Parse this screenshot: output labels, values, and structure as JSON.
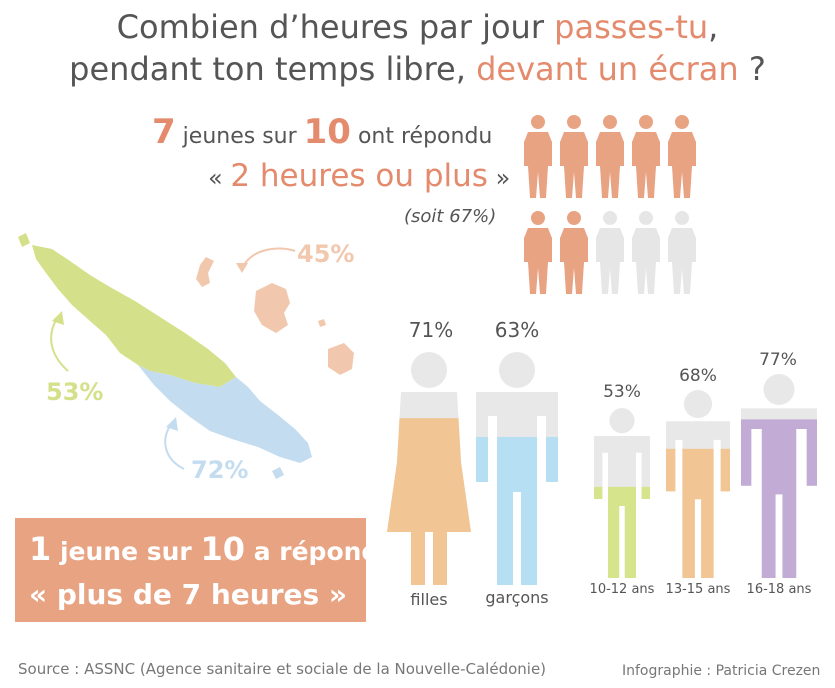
{
  "title": {
    "line1_a": "Combien d’heures par jour ",
    "line1_b": "passes-tu",
    "line1_c": ",",
    "line2_a": "pendant ton temps libre, ",
    "line2_b": "devant un écran",
    "line2_c": " ?"
  },
  "headline": {
    "n1": "7",
    "t1": " jeunes sur ",
    "n2": "10",
    "t2": " ont répondu",
    "quote_open": "« ",
    "quote_text": "2 heures ou plus",
    "quote_close": " »",
    "soit": "(soit 67%)"
  },
  "people_grid": {
    "total": 10,
    "highlighted": 7,
    "color_on": "#e8a383",
    "color_off": "#e6e6e6"
  },
  "map": {
    "north": {
      "value": "53%",
      "color": "#d5e08a"
    },
    "south": {
      "value": "72%",
      "color": "#c3dcf0"
    },
    "islands": {
      "value": "45%",
      "color": "#f1c8ae"
    }
  },
  "banner": {
    "n1": "1",
    "t1": " jeune sur ",
    "n2": "10",
    "t2": " a répondu",
    "line2": "« plus de 7 heures »"
  },
  "gender": [
    {
      "label": "filles",
      "value": "71%",
      "fraction": 0.71,
      "color": "#f1c694"
    },
    {
      "label": "garçons",
      "value": "63%",
      "fraction": 0.63,
      "color": "#b7dff3"
    }
  ],
  "ages": [
    {
      "label": "10-12 ans",
      "value": "53%",
      "fraction": 0.53,
      "color": "#d6e58b"
    },
    {
      "label": "13-15 ans",
      "value": "68%",
      "fraction": 0.68,
      "color": "#f1c694"
    },
    {
      "label": "16-18 ans",
      "value": "77%",
      "fraction": 0.77,
      "color": "#c2acd6"
    }
  ],
  "footer": {
    "source": "Source : ASSNC (Agence sanitaire et sociale de la Nouvelle-Calédonie)",
    "credit": "Infographie : Patricia Crezen"
  },
  "colors": {
    "accent": "#e48a6d",
    "empty": "#e8e8e8",
    "text": "#555555"
  }
}
